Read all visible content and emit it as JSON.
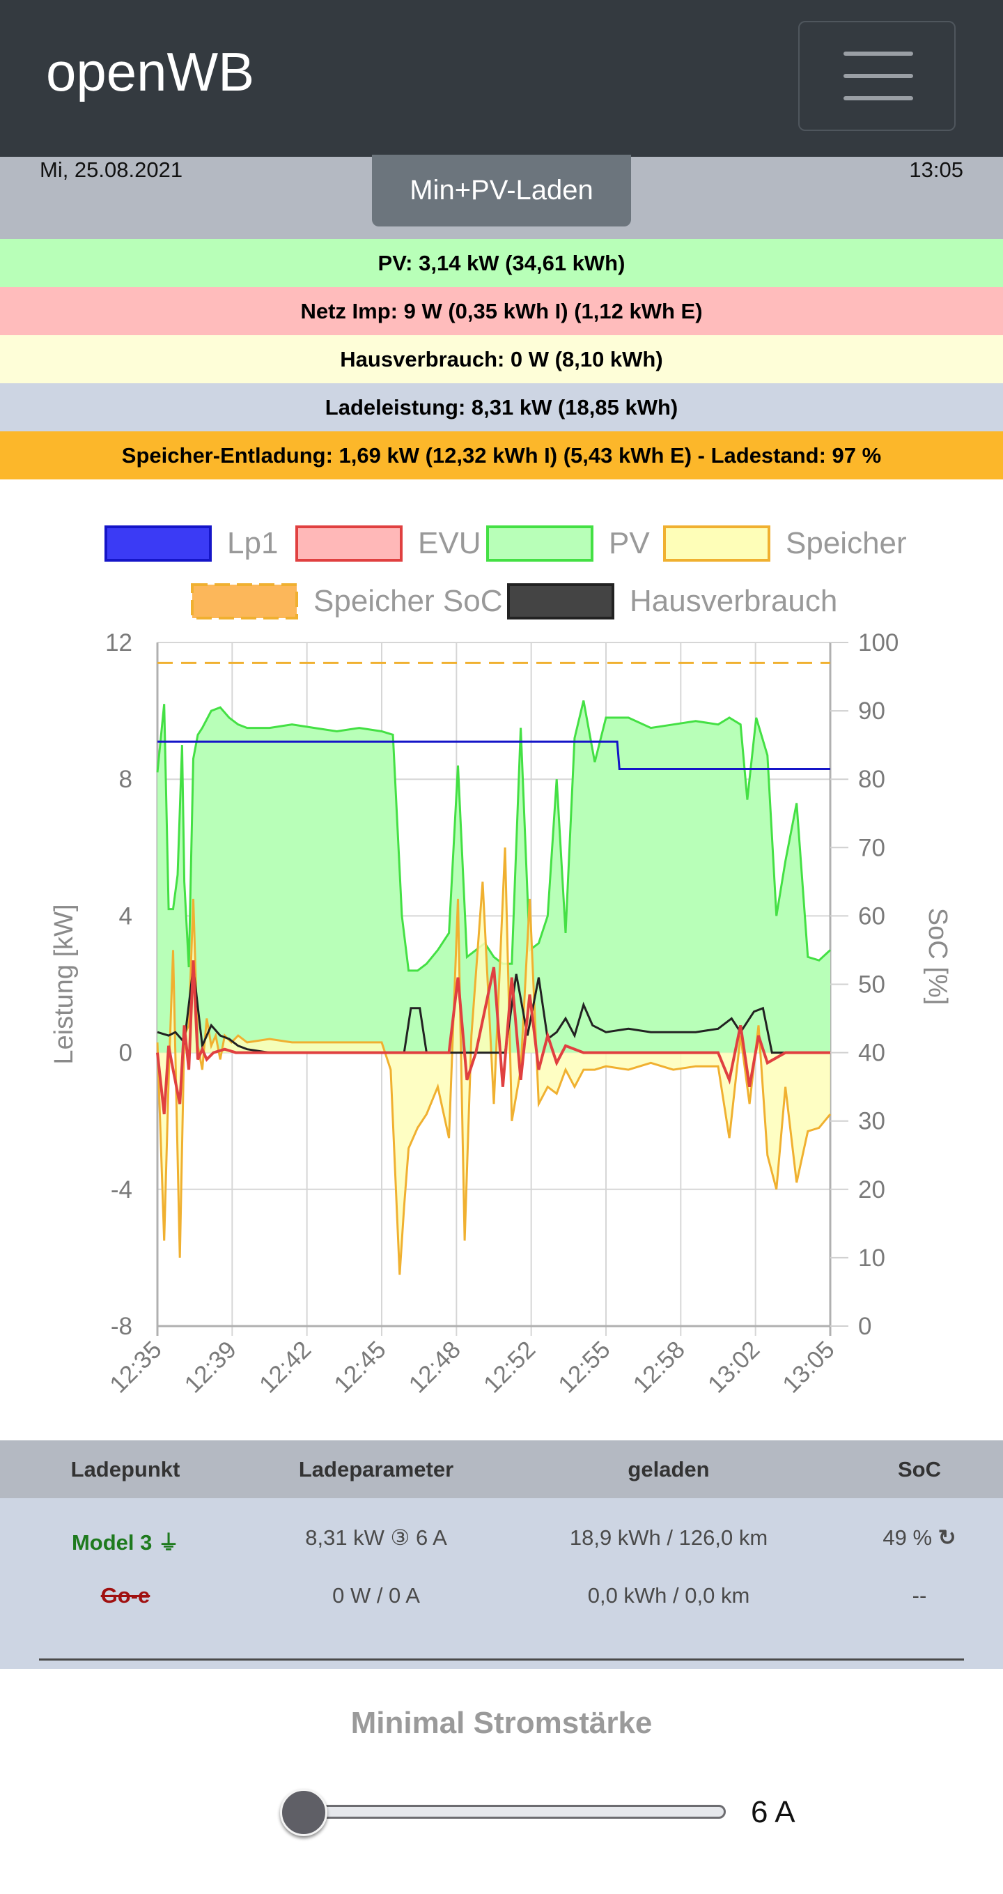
{
  "navbar": {
    "brand": "openWB",
    "menu_icon": "hamburger-icon"
  },
  "header": {
    "date": "Mi, 25.08.2021",
    "time": "13:05",
    "mode_label": "Min+PV-Laden"
  },
  "status_rows": [
    {
      "text": "PV: 3,14 kW (34,61 kWh)",
      "color": "#b8ffb8"
    },
    {
      "text": "Netz Imp: 9 W (0,35 kWh I) (1,12 kWh E)",
      "color": "#ffbcbc"
    },
    {
      "text": "Hausverbrauch: 0 W (8,10 kWh)",
      "color": "#fefed8"
    },
    {
      "text": "Ladeleistung: 8,31 kW (18,85 kWh)",
      "color": "#cdd5e3"
    },
    {
      "text": "Speicher-Entladung: 1,69 kW (12,32 kWh I) (5,43 kWh E) - Ladestand: 97 %",
      "color": "#fcb72a"
    }
  ],
  "chart_data": {
    "type": "area",
    "legend": [
      {
        "name": "Lp1",
        "fill": "#3b3bf5",
        "stroke": "#1515c8",
        "dashed": false
      },
      {
        "name": "EVU",
        "fill": "#ffb8b8",
        "stroke": "#e04040",
        "dashed": false
      },
      {
        "name": "PV",
        "fill": "#b8ffb8",
        "stroke": "#44e044",
        "dashed": false
      },
      {
        "name": "Speicher",
        "fill": "#fefeb8",
        "stroke": "#f0b030",
        "dashed": false
      },
      {
        "name": "Speicher SoC",
        "fill": "#fcb75a",
        "stroke": "#f0b030",
        "dashed": true
      },
      {
        "name": "Hausverbrauch",
        "fill": "#444444",
        "stroke": "#222222",
        "dashed": false
      }
    ],
    "ylabel": "Leistung [kW]",
    "y2label": "SoC [%]",
    "ylim": [
      -8,
      12
    ],
    "y2lim": [
      0,
      100
    ],
    "yticks": [
      "12",
      "8",
      "4",
      "0",
      "-4",
      "-8"
    ],
    "y2ticks": [
      "100",
      "90",
      "80",
      "70",
      "60",
      "50",
      "40",
      "30",
      "20",
      "10",
      "0"
    ],
    "xticks": [
      "12:35",
      "12:39",
      "12:42",
      "12:45",
      "12:48",
      "12:52",
      "12:55",
      "12:58",
      "13:02",
      "13:05"
    ],
    "xlim_min": [
      0,
      30
    ],
    "series": [
      {
        "name": "PV",
        "unit": "kW",
        "x": [
          0,
          0.3,
          0.5,
          0.7,
          0.9,
          1.1,
          1.2,
          1.4,
          1.6,
          1.8,
          2,
          2.4,
          2.8,
          3.2,
          3.6,
          4,
          5,
          6,
          7,
          8,
          9,
          10,
          10.5,
          10.9,
          11.2,
          11.6,
          12.0,
          12.5,
          13.0,
          13.4,
          13.8,
          14.2,
          14.6,
          15.0,
          15.4,
          15.8,
          16.2,
          16.6,
          17.0,
          17.4,
          17.8,
          18.2,
          18.6,
          19.0,
          19.5,
          20,
          21,
          22,
          23,
          24,
          25,
          25.5,
          26,
          26.3,
          26.7,
          27.2,
          27.6,
          28,
          28.5,
          29,
          29.5,
          30
        ],
        "values": [
          8.2,
          10.2,
          4.2,
          4.2,
          5.2,
          9.0,
          5.0,
          2.5,
          8.6,
          9.3,
          9.5,
          10.0,
          10.1,
          9.8,
          9.6,
          9.5,
          9.5,
          9.6,
          9.5,
          9.4,
          9.5,
          9.4,
          9.3,
          4.0,
          2.4,
          2.4,
          2.6,
          3.0,
          3.5,
          8.4,
          2.8,
          3.0,
          3.2,
          2.8,
          2.6,
          2.6,
          9.5,
          3.0,
          3.2,
          4.0,
          8.0,
          3.5,
          9.2,
          10.3,
          8.5,
          9.8,
          9.8,
          9.5,
          9.6,
          9.7,
          9.6,
          9.8,
          9.6,
          7.4,
          9.8,
          8.7,
          4.0,
          5.6,
          7.3,
          2.8,
          2.7,
          3.0
        ]
      },
      {
        "name": "Speicher",
        "unit": "kW",
        "x": [
          0,
          0.3,
          0.5,
          0.7,
          1.0,
          1.2,
          1.4,
          1.6,
          1.8,
          2.0,
          2.2,
          2.4,
          2.6,
          2.8,
          3,
          3.3,
          3.6,
          4,
          5,
          6,
          7,
          8,
          9,
          10,
          10.4,
          10.8,
          11.0,
          11.2,
          11.6,
          12.0,
          12.5,
          13.0,
          13.4,
          13.7,
          14.0,
          14.5,
          15.0,
          15.5,
          15.8,
          16.2,
          16.6,
          17,
          17.4,
          17.8,
          18.2,
          18.6,
          19,
          19.5,
          20,
          21,
          22,
          23,
          24,
          25,
          25.5,
          26,
          26.4,
          26.8,
          27.2,
          27.6,
          28,
          28.5,
          29,
          29.5,
          30
        ],
        "values": [
          0.3,
          -5.5,
          -0.8,
          3.0,
          -6.0,
          0.5,
          0.8,
          4.5,
          0.2,
          -0.5,
          1.0,
          0.2,
          0.5,
          -0.2,
          0.5,
          0.3,
          0.5,
          0.3,
          0.4,
          0.3,
          0.3,
          0.3,
          0.3,
          0.3,
          -0.5,
          -6.5,
          -4.5,
          -2.8,
          -2.2,
          -1.8,
          -1.0,
          -2.5,
          4.5,
          -5.5,
          0.5,
          5.0,
          -1.5,
          6.0,
          -2.0,
          -0.5,
          4.5,
          -1.5,
          -1.0,
          -1.2,
          -0.5,
          -1.0,
          -0.5,
          -0.5,
          -0.4,
          -0.5,
          -0.3,
          -0.5,
          -0.4,
          -0.4,
          -2.5,
          0.5,
          -1.5,
          0.8,
          -3.0,
          -4.0,
          -1.0,
          -3.8,
          -2.3,
          -2.2,
          -1.8
        ]
      },
      {
        "name": "EVU",
        "unit": "kW",
        "x": [
          0,
          0.3,
          0.5,
          0.7,
          1.0,
          1.2,
          1.4,
          1.6,
          1.8,
          2.0,
          2.2,
          2.5,
          3,
          3.5,
          4,
          5,
          6,
          7,
          8,
          9,
          10,
          11,
          12,
          13,
          13.4,
          13.8,
          14.2,
          15,
          15.4,
          15.8,
          16.2,
          16.6,
          17,
          17.4,
          17.8,
          18.2,
          19,
          20,
          21,
          22,
          23,
          24,
          25,
          25.5,
          26,
          26.4,
          26.8,
          27.2,
          28,
          29,
          30
        ],
        "values": [
          0,
          -1.8,
          0.2,
          -0.5,
          -1.5,
          0.8,
          -0.5,
          2.7,
          -0.2,
          0.1,
          -0.2,
          0.0,
          0.1,
          0.0,
          0.0,
          0.0,
          0.0,
          0.0,
          0.0,
          0.0,
          0.0,
          0.0,
          0.0,
          0.0,
          2.2,
          -0.8,
          0.0,
          2.5,
          -1.0,
          2.2,
          -0.8,
          1.7,
          -0.5,
          0.5,
          -0.3,
          0.2,
          0.0,
          0.0,
          0.0,
          0.0,
          0.0,
          0.0,
          0.0,
          -0.8,
          0.8,
          -1.0,
          0.5,
          -0.3,
          0.0,
          0.0,
          0.0
        ]
      },
      {
        "name": "Hausverbrauch",
        "unit": "kW",
        "x": [
          0,
          0.5,
          0.8,
          1.2,
          1.6,
          2.0,
          2.4,
          2.8,
          3.2,
          3.6,
          4,
          5,
          6,
          7,
          8,
          9,
          10,
          11,
          11.3,
          11.7,
          12,
          13,
          14,
          15,
          15.5,
          16,
          16.5,
          17,
          17.4,
          17.8,
          18.2,
          18.6,
          19,
          19.4,
          20,
          21,
          22,
          23,
          24,
          25,
          25.6,
          26,
          26.6,
          27,
          27.4,
          28,
          29,
          30
        ],
        "values": [
          0.6,
          0.5,
          0.6,
          0.3,
          2.5,
          0.2,
          0.8,
          0.5,
          0.4,
          0.2,
          0.1,
          0.0,
          0.0,
          0.0,
          0.0,
          0.0,
          0.0,
          0.0,
          1.3,
          1.3,
          0.0,
          0.0,
          0.0,
          0.0,
          0.0,
          2.3,
          0.5,
          2.2,
          0.4,
          0.6,
          1.0,
          0.5,
          1.4,
          0.8,
          0.6,
          0.7,
          0.6,
          0.6,
          0.6,
          0.7,
          1.0,
          0.6,
          1.2,
          1.3,
          0.0,
          0.0,
          0.0,
          0.0
        ]
      },
      {
        "name": "Lp1",
        "unit": "kW",
        "x": [
          0,
          20.5,
          20.6,
          30
        ],
        "values": [
          9.1,
          9.1,
          8.3,
          8.3
        ]
      },
      {
        "name": "Speicher SoC",
        "unit": "%",
        "x": [
          0,
          30
        ],
        "values": [
          97,
          97
        ]
      }
    ]
  },
  "table": {
    "headers": [
      "Ladepunkt",
      "Ladeparameter",
      "geladen",
      "SoC"
    ],
    "rows": [
      {
        "name": "Model 3",
        "name_color": "#1e7a1e",
        "plug_icon": "plug-icon",
        "param": "8,31 kW ③ 6 A",
        "charged": "18,9 kWh / 126,0 km",
        "soc": "49 %",
        "soc_icon": "refresh-icon"
      },
      {
        "name": "Go-e",
        "name_color": "#a01010",
        "param": "0 W / 0 A",
        "charged": "0,0 kWh / 0,0 km",
        "soc": "--"
      }
    ]
  },
  "min_current": {
    "label": "Minimal Stromstärke",
    "value_label": "6 A",
    "level_fraction": 0.0
  }
}
